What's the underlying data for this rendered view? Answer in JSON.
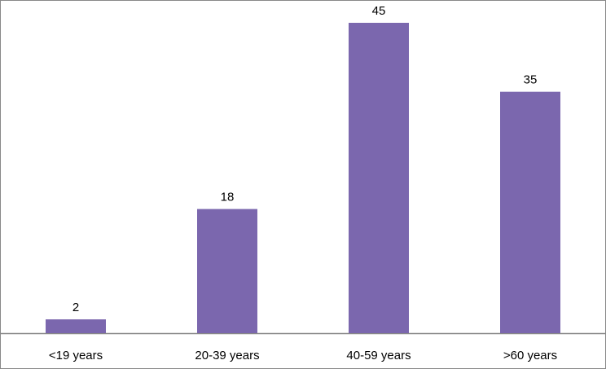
{
  "chart_data": {
    "type": "bar",
    "categories": [
      "<19 years",
      "20-39 years",
      "40-59 years",
      ">60 years"
    ],
    "values": [
      2,
      18,
      45,
      35
    ],
    "color": "#7b67ae"
  }
}
